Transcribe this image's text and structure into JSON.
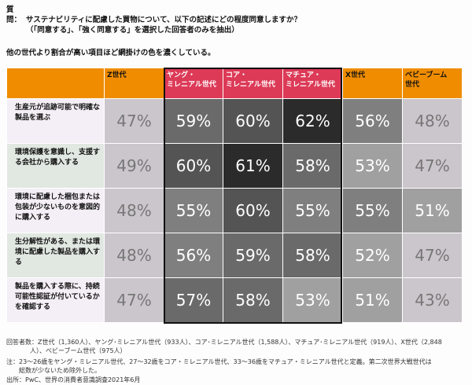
{
  "question": {
    "label": "質問：",
    "text": "サステナビリティに配慮した買物について、以下の記述にどの程度同意しますか？",
    "sub": "（「同意する」、「強く同意する」を選択した回答者のみを抽出）"
  },
  "note": "他の世代より割合が高い項目ほど網掛けの色を濃くしている。",
  "colors": {
    "header": "#ef8c00",
    "millennial_header": "#dc3a57",
    "frame": "#111111"
  },
  "chart_data": {
    "type": "heatmap",
    "columns": [
      "Z世代",
      "ヤング・\nミレニアル世代",
      "コア・\nミレニアル世代",
      "マチュア・\nミレニアル世代",
      "X世代",
      "ベビーブーム\n世代"
    ],
    "rows": [
      {
        "label": "生産元が追跡可能で明確な製品を選ぶ",
        "values": [
          47,
          59,
          60,
          62,
          56,
          48
        ],
        "display": [
          "47%",
          "59%",
          "60%",
          "62%",
          "56%",
          "48%"
        ]
      },
      {
        "label": "環境保護を意識し、支援する会社から購入する",
        "values": [
          49,
          60,
          61,
          58,
          53,
          47
        ],
        "display": [
          "49%",
          "60%",
          "61%",
          "58%",
          "53%",
          "47%"
        ]
      },
      {
        "label": "環境に配慮した梱包または包装が少ないものを意図的に購入する",
        "values": [
          48,
          55,
          60,
          55,
          55,
          51
        ],
        "display": [
          "48%",
          "55%",
          "60%",
          "55%",
          "55%",
          "51%"
        ]
      },
      {
        "label": "生分解性がある、または環境に配慮した製品を購入する",
        "values": [
          48,
          56,
          59,
          58,
          52,
          47
        ],
        "display": [
          "48%",
          "56%",
          "59%",
          "58%",
          "52%",
          "47%"
        ]
      },
      {
        "label": "製品を購入する際に、持続可能性認証が付いているかを確認する",
        "values": [
          47,
          57,
          58,
          53,
          51,
          43
        ],
        "display": [
          "47%",
          "57%",
          "58%",
          "53%",
          "51%",
          "43%"
        ]
      }
    ],
    "unit": "%"
  },
  "footer": {
    "respondents": "回答者数：Z世代（1,360人）、ヤング･ミレニアル世代（933人）、コア･ミレニアル世代（1,588人）、マチュア･ミレニアル世代（919人）、X世代（2,848",
    "respondents2": "人）、ベビーブーム世代（975人）",
    "notes": "注：23〜26歳をヤング・ミレニアル世代、27〜32歳をコア・ミレニアル世代、33〜36歳をマチュア・ミレニアル世代と定義。第二次世界大戦世代は",
    "notes2": "総数が少ないため除外した。",
    "source": "出所：PwC、世界の消費者意識調査2021年6月"
  }
}
